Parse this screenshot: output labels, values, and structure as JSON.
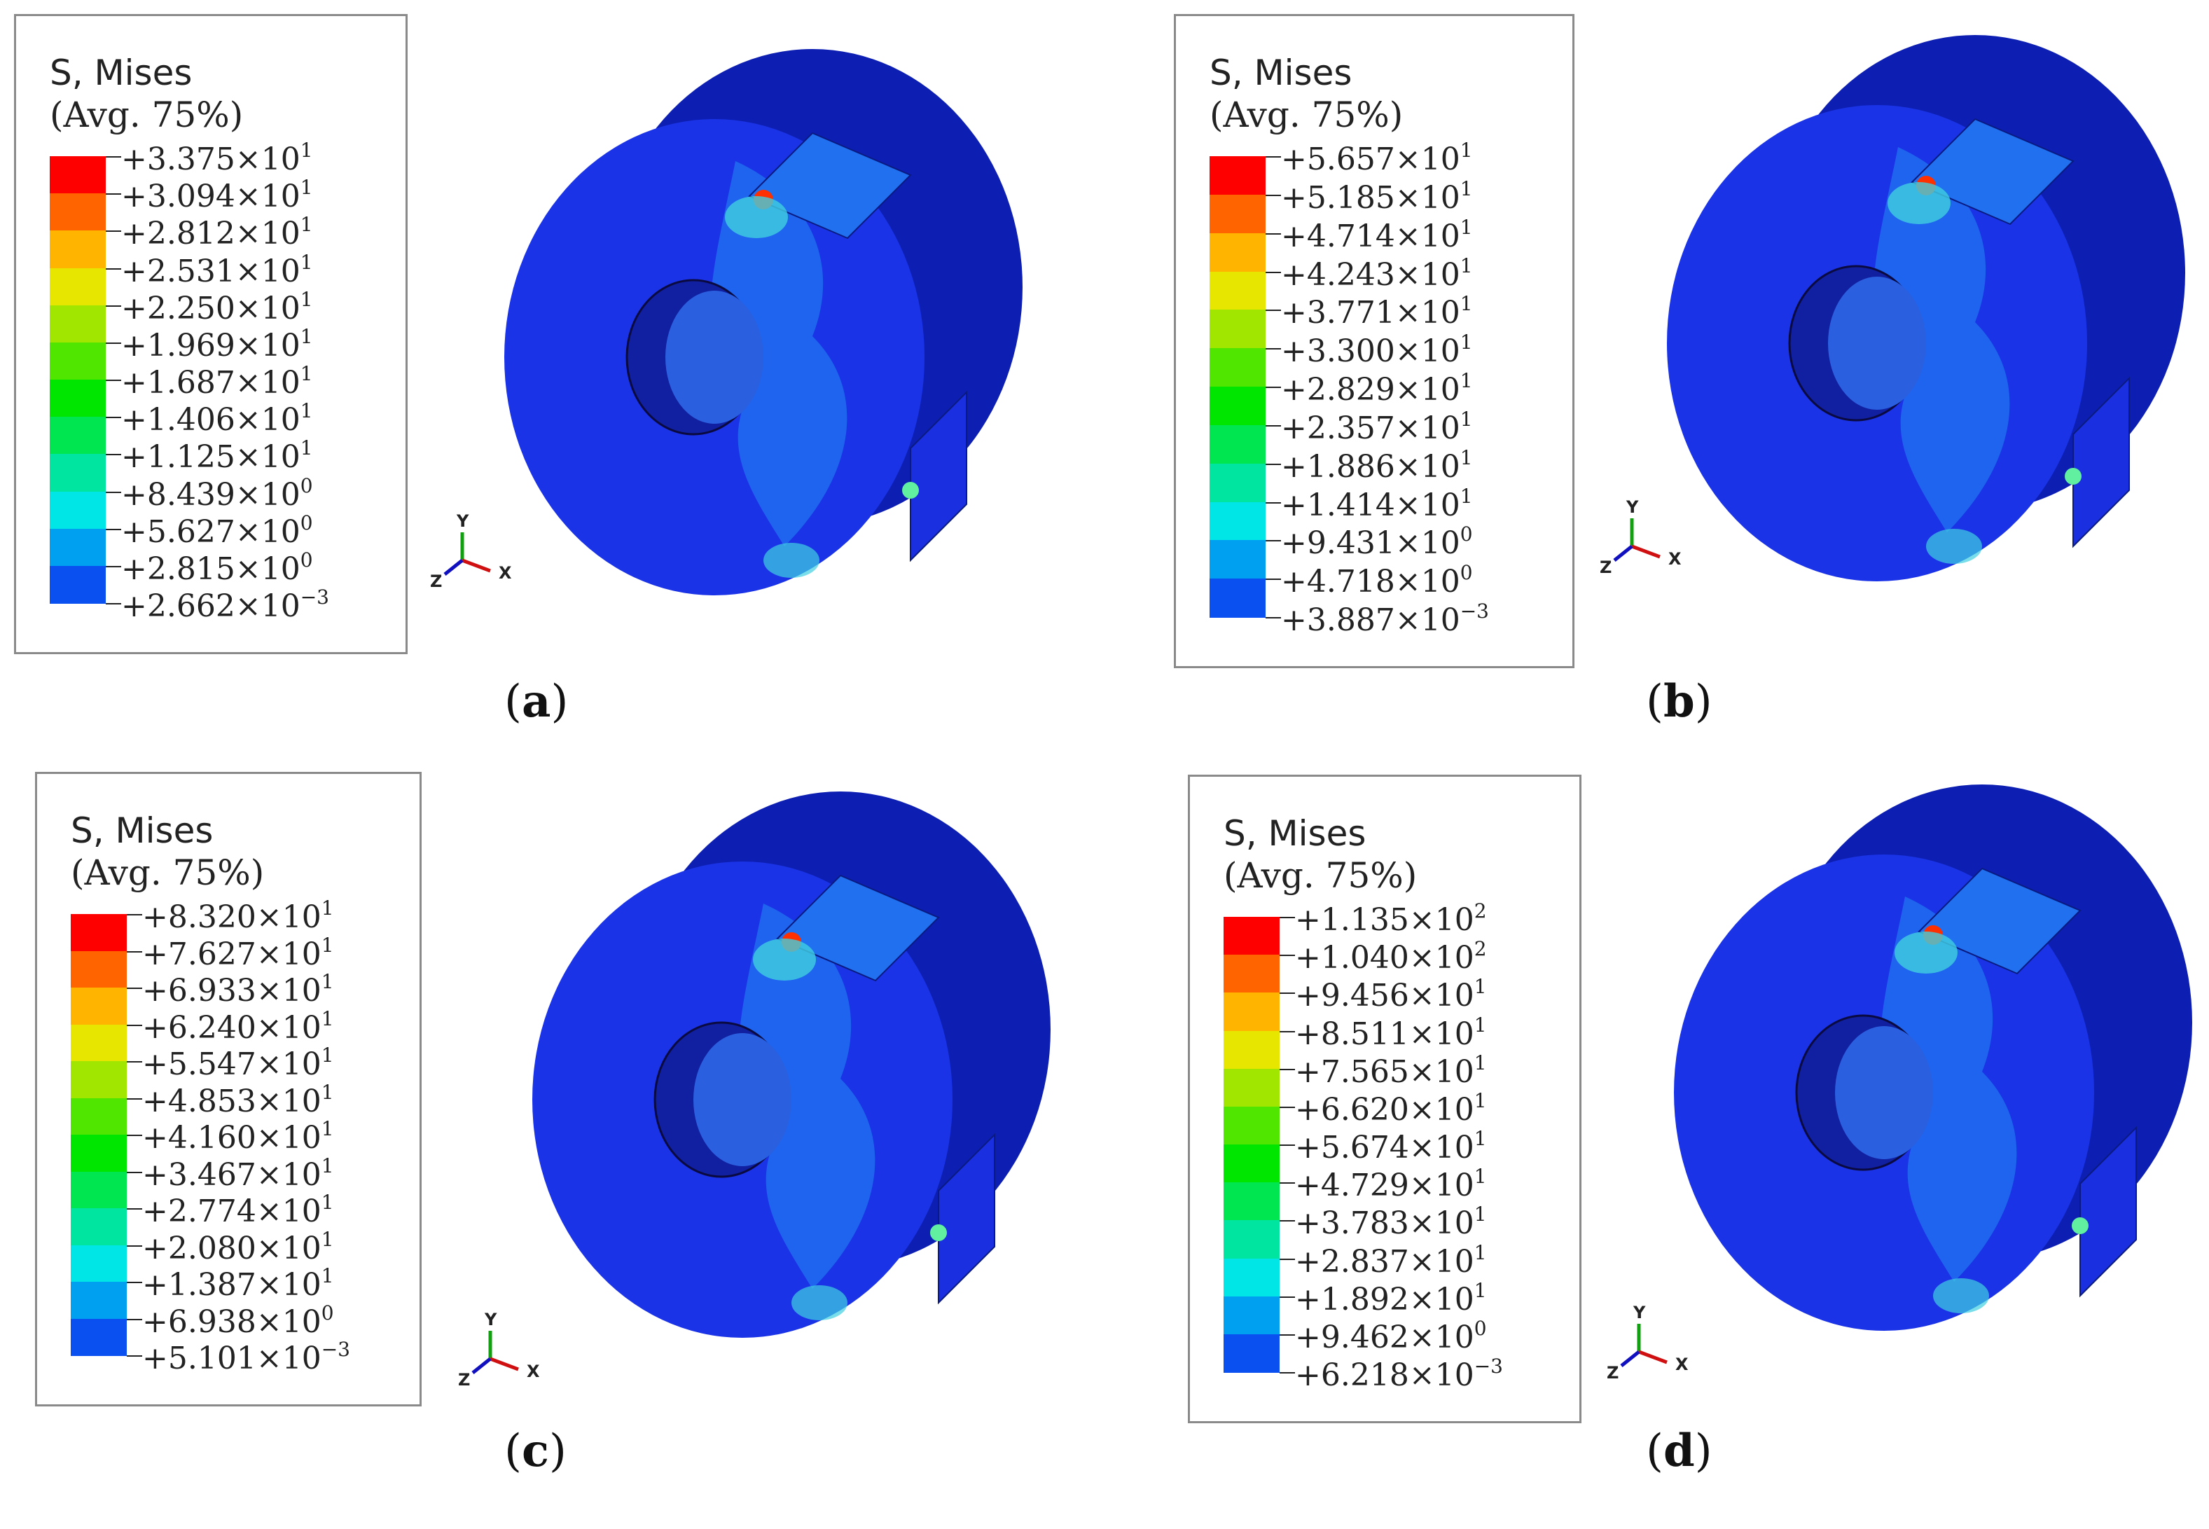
{
  "colors": {
    "contour": [
      "#0000ff",
      "#0a50f0",
      "#00a0f0",
      "#00e6e6",
      "#00e6a0",
      "#00e650",
      "#00e600",
      "#50e600",
      "#a0e600",
      "#e6e600",
      "#ffb400",
      "#ff6400",
      "#ff0000"
    ],
    "model_base": "#1a33e6",
    "model_dark": "#0d1fb3",
    "model_light": "#2070f0",
    "axis_x": "#d01010",
    "axis_y": "#10a010",
    "axis_z": "#1010c0"
  },
  "panels": [
    {
      "label": "a",
      "legend_title": "S, Mises",
      "legend_subtitle": "(Avg. 75%)",
      "values": [
        {
          "mantissa": "+3.375",
          "exp": "1"
        },
        {
          "mantissa": "+3.094",
          "exp": "1"
        },
        {
          "mantissa": "+2.812",
          "exp": "1"
        },
        {
          "mantissa": "+2.531",
          "exp": "1"
        },
        {
          "mantissa": "+2.250",
          "exp": "1"
        },
        {
          "mantissa": "+1.969",
          "exp": "1"
        },
        {
          "mantissa": "+1.687",
          "exp": "1"
        },
        {
          "mantissa": "+1.406",
          "exp": "1"
        },
        {
          "mantissa": "+1.125",
          "exp": "1"
        },
        {
          "mantissa": "+8.439",
          "exp": "0"
        },
        {
          "mantissa": "+5.627",
          "exp": "0"
        },
        {
          "mantissa": "+2.815",
          "exp": "0"
        },
        {
          "mantissa": "+2.662",
          "exp": "−3"
        }
      ],
      "axis": {
        "x": "X",
        "y": "Y",
        "z": "Z"
      }
    },
    {
      "label": "b",
      "legend_title": "S, Mises",
      "legend_subtitle": "(Avg. 75%)",
      "values": [
        {
          "mantissa": "+5.657",
          "exp": "1"
        },
        {
          "mantissa": "+5.185",
          "exp": "1"
        },
        {
          "mantissa": "+4.714",
          "exp": "1"
        },
        {
          "mantissa": "+4.243",
          "exp": "1"
        },
        {
          "mantissa": "+3.771",
          "exp": "1"
        },
        {
          "mantissa": "+3.300",
          "exp": "1"
        },
        {
          "mantissa": "+2.829",
          "exp": "1"
        },
        {
          "mantissa": "+2.357",
          "exp": "1"
        },
        {
          "mantissa": "+1.886",
          "exp": "1"
        },
        {
          "mantissa": "+1.414",
          "exp": "1"
        },
        {
          "mantissa": "+9.431",
          "exp": "0"
        },
        {
          "mantissa": "+4.718",
          "exp": "0"
        },
        {
          "mantissa": "+3.887",
          "exp": "−3"
        }
      ],
      "axis": {
        "x": "X",
        "y": "Y",
        "z": "Z"
      }
    },
    {
      "label": "c",
      "legend_title": "S, Mises",
      "legend_subtitle": "(Avg. 75%)",
      "values": [
        {
          "mantissa": "+8.320",
          "exp": "1"
        },
        {
          "mantissa": "+7.627",
          "exp": "1"
        },
        {
          "mantissa": "+6.933",
          "exp": "1"
        },
        {
          "mantissa": "+6.240",
          "exp": "1"
        },
        {
          "mantissa": "+5.547",
          "exp": "1"
        },
        {
          "mantissa": "+4.853",
          "exp": "1"
        },
        {
          "mantissa": "+4.160",
          "exp": "1"
        },
        {
          "mantissa": "+3.467",
          "exp": "1"
        },
        {
          "mantissa": "+2.774",
          "exp": "1"
        },
        {
          "mantissa": "+2.080",
          "exp": "1"
        },
        {
          "mantissa": "+1.387",
          "exp": "1"
        },
        {
          "mantissa": "+6.938",
          "exp": "0"
        },
        {
          "mantissa": "+5.101",
          "exp": "−3"
        }
      ],
      "axis": {
        "x": "X",
        "y": "Y",
        "z": "Z"
      }
    },
    {
      "label": "d",
      "legend_title": "S, Mises",
      "legend_subtitle": "(Avg. 75%)",
      "values": [
        {
          "mantissa": "+1.135",
          "exp": "2"
        },
        {
          "mantissa": "+1.040",
          "exp": "2"
        },
        {
          "mantissa": "+9.456",
          "exp": "1"
        },
        {
          "mantissa": "+8.511",
          "exp": "1"
        },
        {
          "mantissa": "+7.565",
          "exp": "1"
        },
        {
          "mantissa": "+6.620",
          "exp": "1"
        },
        {
          "mantissa": "+5.674",
          "exp": "1"
        },
        {
          "mantissa": "+4.729",
          "exp": "1"
        },
        {
          "mantissa": "+3.783",
          "exp": "1"
        },
        {
          "mantissa": "+2.837",
          "exp": "1"
        },
        {
          "mantissa": "+1.892",
          "exp": "1"
        },
        {
          "mantissa": "+9.462",
          "exp": "0"
        },
        {
          "mantissa": "+6.218",
          "exp": "−3"
        }
      ],
      "axis": {
        "x": "X",
        "y": "Y",
        "z": "Z"
      }
    }
  ]
}
